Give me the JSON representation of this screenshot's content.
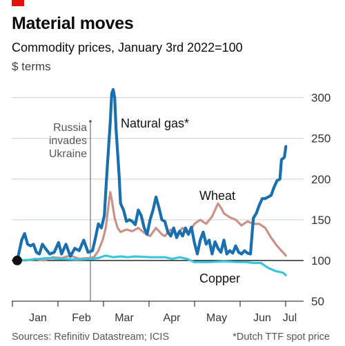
{
  "header": {
    "brand_color": "#e3120b",
    "title": "Material moves",
    "subtitle": "Commodity prices, January 3rd 2022=100",
    "unit": "$ terms"
  },
  "footer": {
    "source": "Sources: Refinitiv Datastream; ICIS",
    "note": "*Dutch TTF spot price"
  },
  "chart_data": {
    "type": "line",
    "x_ticks": [
      "Jan",
      "Feb",
      "Mar",
      "Apr",
      "May",
      "Jun",
      "Jul"
    ],
    "x_range_days": [
      0,
      187
    ],
    "ylim": [
      50,
      320
    ],
    "y_ticks": [
      50,
      100,
      150,
      200,
      250,
      300
    ],
    "grid": true,
    "baseline": 100,
    "annotation": {
      "lines": [
        "Russia",
        "invades",
        "Ukraine"
      ],
      "day": 51
    },
    "series": [
      {
        "name": "Natural gas*",
        "color": "#1a6faf",
        "points": [
          [
            0,
            100
          ],
          [
            3,
            125
          ],
          [
            5,
            133
          ],
          [
            7,
            120
          ],
          [
            9,
            118
          ],
          [
            11,
            120
          ],
          [
            13,
            110
          ],
          [
            15,
            108
          ],
          [
            17,
            120
          ],
          [
            19,
            115
          ],
          [
            22,
            108
          ],
          [
            25,
            110
          ],
          [
            28,
            122
          ],
          [
            30,
            108
          ],
          [
            33,
            120
          ],
          [
            36,
            105
          ],
          [
            39,
            115
          ],
          [
            42,
            112
          ],
          [
            45,
            125
          ],
          [
            48,
            110
          ],
          [
            51,
            112
          ],
          [
            53,
            128
          ],
          [
            55,
            145
          ],
          [
            57,
            140
          ],
          [
            59,
            155
          ],
          [
            60,
            185
          ],
          [
            61,
            215
          ],
          [
            62,
            242
          ],
          [
            63,
            270
          ],
          [
            64,
            305
          ],
          [
            65,
            310
          ],
          [
            66,
            300
          ],
          [
            67,
            260
          ],
          [
            68,
            232
          ],
          [
            69,
            205
          ],
          [
            70,
            170
          ],
          [
            72,
            162
          ],
          [
            74,
            148
          ],
          [
            76,
            150
          ],
          [
            78,
            148
          ],
          [
            80,
            144
          ],
          [
            82,
            162
          ],
          [
            84,
            155
          ],
          [
            86,
            140
          ],
          [
            88,
            132
          ],
          [
            90,
            150
          ],
          [
            92,
            162
          ],
          [
            94,
            178
          ],
          [
            96,
            165
          ],
          [
            98,
            150
          ],
          [
            100,
            148
          ],
          [
            102,
            135
          ],
          [
            104,
            130
          ],
          [
            106,
            140
          ],
          [
            108,
            128
          ],
          [
            110,
            136
          ],
          [
            112,
            130
          ],
          [
            114,
            140
          ],
          [
            116,
            132
          ],
          [
            118,
            141
          ],
          [
            120,
            122
          ],
          [
            122,
            108
          ],
          [
            124,
            125
          ],
          [
            126,
            135
          ],
          [
            128,
            120
          ],
          [
            130,
            125
          ],
          [
            132,
            108
          ],
          [
            134,
            123
          ],
          [
            136,
            115
          ],
          [
            138,
            110
          ],
          [
            140,
            125
          ],
          [
            142,
            108
          ],
          [
            144,
            112
          ],
          [
            146,
            109
          ],
          [
            148,
            118
          ],
          [
            150,
            110
          ],
          [
            152,
            108
          ],
          [
            154,
            112
          ],
          [
            156,
            109
          ],
          [
            158,
            108
          ],
          [
            160,
            152
          ],
          [
            162,
            158
          ],
          [
            164,
            168
          ],
          [
            166,
            176
          ],
          [
            168,
            176
          ],
          [
            170,
            178
          ],
          [
            172,
            180
          ],
          [
            174,
            190
          ],
          [
            176,
            198
          ],
          [
            178,
            200
          ],
          [
            179,
            224
          ],
          [
            180,
            225
          ],
          [
            181,
            227
          ],
          [
            182,
            240
          ]
        ]
      },
      {
        "name": "Wheat",
        "color": "#c99188",
        "points": [
          [
            0,
            100
          ],
          [
            6,
            100
          ],
          [
            12,
            102
          ],
          [
            18,
            100
          ],
          [
            24,
            104
          ],
          [
            30,
            103
          ],
          [
            36,
            106
          ],
          [
            42,
            102
          ],
          [
            48,
            103
          ],
          [
            52,
            104
          ],
          [
            55,
            112
          ],
          [
            58,
            126
          ],
          [
            60,
            140
          ],
          [
            62,
            170
          ],
          [
            63,
            184
          ],
          [
            64,
            175
          ],
          [
            66,
            152
          ],
          [
            68,
            140
          ],
          [
            70,
            135
          ],
          [
            74,
            138
          ],
          [
            78,
            136
          ],
          [
            82,
            140
          ],
          [
            86,
            134
          ],
          [
            90,
            130
          ],
          [
            94,
            140
          ],
          [
            98,
            132
          ],
          [
            100,
            130
          ],
          [
            104,
            138
          ],
          [
            108,
            132
          ],
          [
            112,
            140
          ],
          [
            116,
            132
          ],
          [
            120,
            145
          ],
          [
            124,
            150
          ],
          [
            128,
            145
          ],
          [
            132,
            154
          ],
          [
            136,
            170
          ],
          [
            138,
            165
          ],
          [
            140,
            158
          ],
          [
            144,
            153
          ],
          [
            148,
            150
          ],
          [
            152,
            143
          ],
          [
            156,
            148
          ],
          [
            160,
            145
          ],
          [
            164,
            145
          ],
          [
            168,
            140
          ],
          [
            172,
            128
          ],
          [
            176,
            118
          ],
          [
            180,
            110
          ],
          [
            182,
            106
          ]
        ]
      },
      {
        "name": "Copper",
        "color": "#39c6db",
        "points": [
          [
            0,
            100
          ],
          [
            10,
            101
          ],
          [
            20,
            103
          ],
          [
            30,
            102
          ],
          [
            40,
            101
          ],
          [
            50,
            102
          ],
          [
            55,
            103
          ],
          [
            60,
            106
          ],
          [
            65,
            104
          ],
          [
            70,
            105
          ],
          [
            75,
            104
          ],
          [
            80,
            105
          ],
          [
            90,
            104
          ],
          [
            100,
            104
          ],
          [
            105,
            102
          ],
          [
            110,
            104
          ],
          [
            115,
            102
          ],
          [
            120,
            98
          ],
          [
            130,
            98
          ],
          [
            140,
            99
          ],
          [
            150,
            98
          ],
          [
            155,
            98
          ],
          [
            160,
            97
          ],
          [
            165,
            97
          ],
          [
            170,
            91
          ],
          [
            175,
            87
          ],
          [
            180,
            85
          ],
          [
            182,
            82
          ]
        ]
      }
    ]
  }
}
